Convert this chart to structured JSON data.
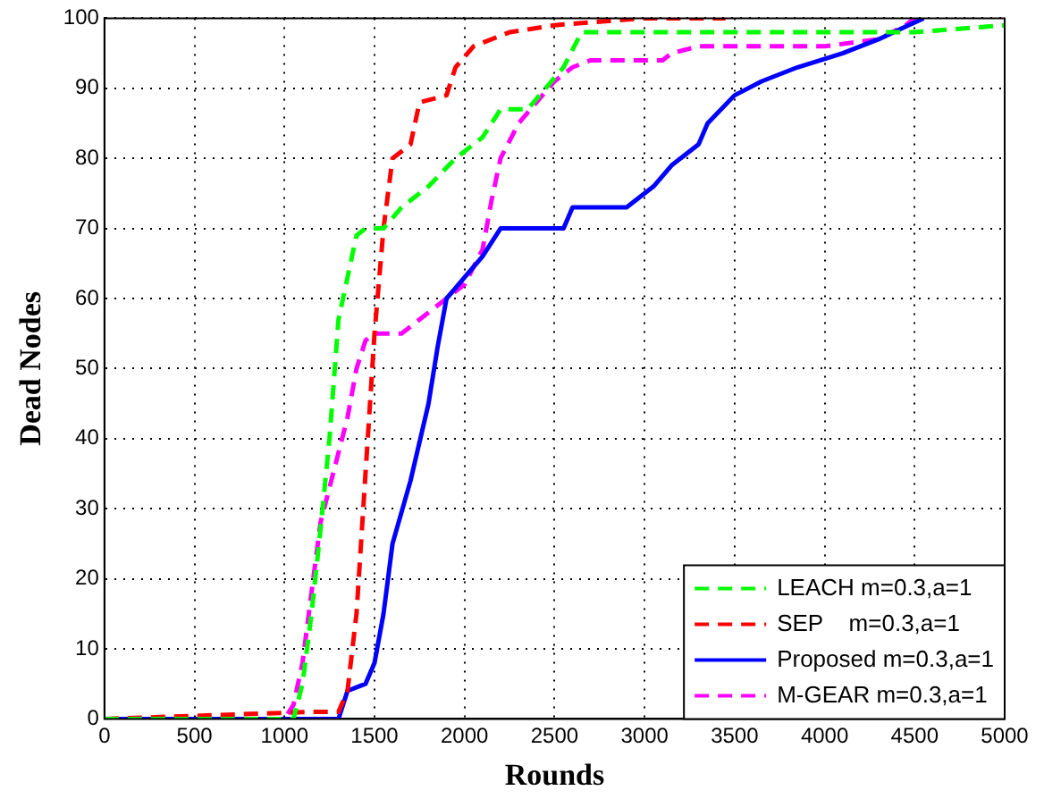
{
  "chart_data": {
    "type": "line",
    "xlabel": "Rounds",
    "ylabel": "Dead Nodes",
    "xlim": [
      0,
      5000
    ],
    "ylim": [
      0,
      100
    ],
    "xticks": [
      0,
      500,
      1000,
      1500,
      2000,
      2500,
      3000,
      3500,
      4000,
      4500,
      5000
    ],
    "yticks": [
      0,
      10,
      20,
      30,
      40,
      50,
      60,
      70,
      80,
      90,
      100
    ],
    "grid": true,
    "legend": "bottom right",
    "marker": "none",
    "series": [
      {
        "name": "LEACH m=0.3,a=1",
        "color": "#00ff00",
        "line_style": "dashed",
        "x": [
          0,
          1050,
          1100,
          1150,
          1200,
          1250,
          1300,
          1350,
          1400,
          1450,
          1550,
          1650,
          1800,
          1950,
          2100,
          2200,
          2350,
          2450,
          2550,
          2650,
          4500,
          5000
        ],
        "values": [
          0,
          0,
          5,
          15,
          27,
          40,
          57,
          63,
          69,
          70,
          70,
          73,
          76,
          80,
          83,
          87,
          87,
          90,
          93,
          98,
          98,
          99
        ]
      },
      {
        "name": "SEP    m=0.3,a=1",
        "color": "#ff0000",
        "line_style": "dashed",
        "x": [
          0,
          1150,
          1300,
          1350,
          1400,
          1450,
          1500,
          1550,
          1600,
          1700,
          1750,
          1900,
          1950,
          2050,
          2250,
          2500,
          3000,
          3450
        ],
        "values": [
          0,
          1,
          1,
          4,
          15,
          35,
          55,
          70,
          80,
          82,
          88,
          89,
          93,
          96,
          98,
          99,
          100,
          100
        ]
      },
      {
        "name": "Proposed m=0.3,a=1",
        "color": "#0000ff",
        "line_style": "solid",
        "x": [
          0,
          1300,
          1350,
          1450,
          1500,
          1550,
          1600,
          1700,
          1800,
          1850,
          1900,
          2000,
          2100,
          2200,
          2550,
          2600,
          2900,
          3050,
          3150,
          3300,
          3350,
          3500,
          3650,
          3850,
          4100,
          4300,
          4550
        ],
        "values": [
          0,
          0,
          4,
          5,
          8,
          15,
          25,
          34,
          45,
          53,
          60,
          63,
          66,
          70,
          70,
          73,
          73,
          76,
          79,
          82,
          85,
          89,
          91,
          93,
          95,
          97,
          100
        ]
      },
      {
        "name": "M-GEAR m=0.3,a=1",
        "color": "#ff00ff",
        "line_style": "dashed",
        "x": [
          0,
          1000,
          1050,
          1100,
          1150,
          1200,
          1300,
          1350,
          1400,
          1450,
          1500,
          1650,
          1750,
          1900,
          2000,
          2100,
          2150,
          2200,
          2300,
          2400,
          2500,
          2600,
          2700,
          3100,
          3150,
          3300,
          4000,
          4300,
          4450,
          4500
        ],
        "values": [
          0,
          0,
          2,
          8,
          18,
          28,
          38,
          43,
          50,
          54,
          55,
          55,
          57,
          60,
          62,
          67,
          74,
          80,
          85,
          88,
          91,
          93,
          94,
          94,
          95,
          96,
          96,
          97,
          99,
          100
        ]
      }
    ]
  }
}
